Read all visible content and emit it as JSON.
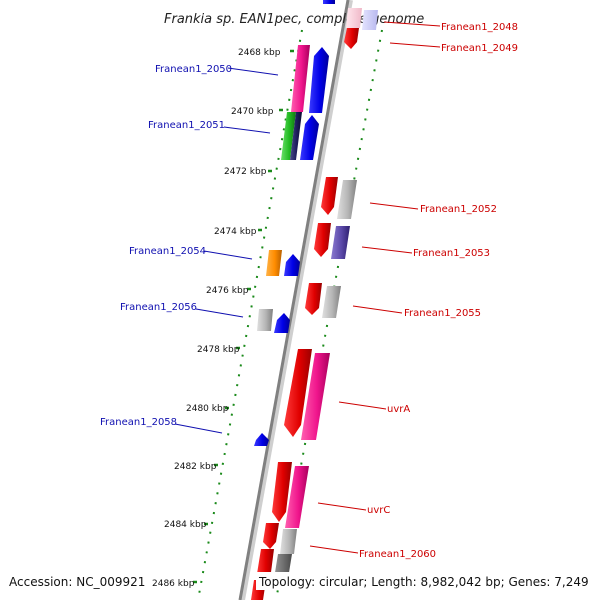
{
  "title": "Frankia sp. EAN1pec, complete genome",
  "accession": "Accession: NC_009921",
  "topology": "Topology: circular; Length: 8,982,042 bp; Genes: 7,249",
  "colors": {
    "left_label": "#1010b0",
    "right_label": "#cc0000",
    "tick": "#1a8a1a",
    "backbone": "#888888"
  },
  "position_ticks": [
    "2468 kbp",
    "2470 kbp",
    "2472 kbp",
    "2474 kbp",
    "2476 kbp",
    "2478 kbp",
    "2480 kbp",
    "2482 kbp",
    "2484 kbp",
    "2486 kbp"
  ],
  "left_labels": [
    "Franean1_2050",
    "Franean1_2051",
    "Franean1_2054",
    "Franean1_2056",
    "Franean1_2058"
  ],
  "right_labels": [
    "Franean1_2048",
    "Franean1_2049",
    "Franean1_2052",
    "Franean1_2053",
    "Franean1_2055",
    "uvrA",
    "uvrC",
    "Franean1_2060"
  ]
}
